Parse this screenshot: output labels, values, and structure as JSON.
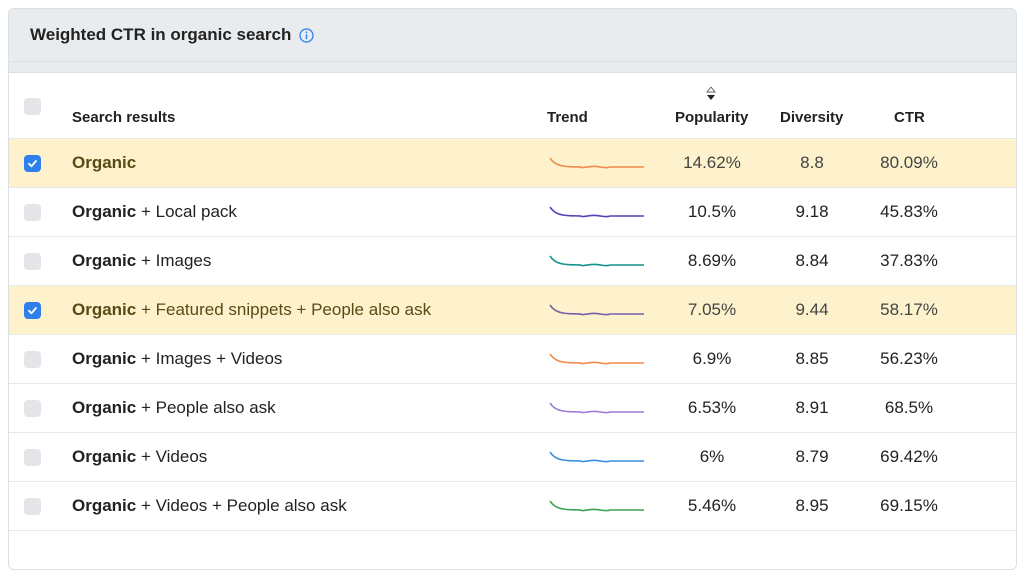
{
  "panel": {
    "title": "Weighted CTR in organic search",
    "info_icon": "info-circle-icon",
    "accent": "#2f80ed"
  },
  "columns": {
    "search_results": "Search results",
    "trend": "Trend",
    "popularity": "Popularity",
    "diversity": "Diversity",
    "ctr": "CTR",
    "sort_icon": "sort-triangles-icon"
  },
  "rows": [
    {
      "bold": "Organic",
      "rest": "",
      "popularity": "14.62%",
      "diversity": "8.8",
      "ctr": "80.09%",
      "checked": true,
      "trend_color": "#f28a4b"
    },
    {
      "bold": "Organic",
      "rest": " + Local pack",
      "popularity": "10.5%",
      "diversity": "9.18",
      "ctr": "45.83%",
      "checked": false,
      "trend_color": "#5b3fb8"
    },
    {
      "bold": "Organic",
      "rest": " + Images",
      "popularity": "8.69%",
      "diversity": "8.84",
      "ctr": "37.83%",
      "checked": false,
      "trend_color": "#16908a"
    },
    {
      "bold": "Organic",
      "rest": " + Featured snippets + People also ask",
      "popularity": "7.05%",
      "diversity": "9.44",
      "ctr": "58.17%",
      "checked": true,
      "trend_color": "#7a5ca8"
    },
    {
      "bold": "Organic",
      "rest": " + Images + Videos",
      "popularity": "6.9%",
      "diversity": "8.85",
      "ctr": "56.23%",
      "checked": false,
      "trend_color": "#f28a4b"
    },
    {
      "bold": "Organic",
      "rest": " + People also ask",
      "popularity": "6.53%",
      "diversity": "8.91",
      "ctr": "68.5%",
      "checked": false,
      "trend_color": "#9b7fd4"
    },
    {
      "bold": "Organic",
      "rest": " + Videos",
      "popularity": "6%",
      "diversity": "8.79",
      "ctr": "69.42%",
      "checked": false,
      "trend_color": "#3a8fe0"
    },
    {
      "bold": "Organic",
      "rest": " + Videos + People also ask",
      "popularity": "5.46%",
      "diversity": "8.95",
      "ctr": "69.15%",
      "checked": false,
      "trend_color": "#3aa356"
    }
  ]
}
